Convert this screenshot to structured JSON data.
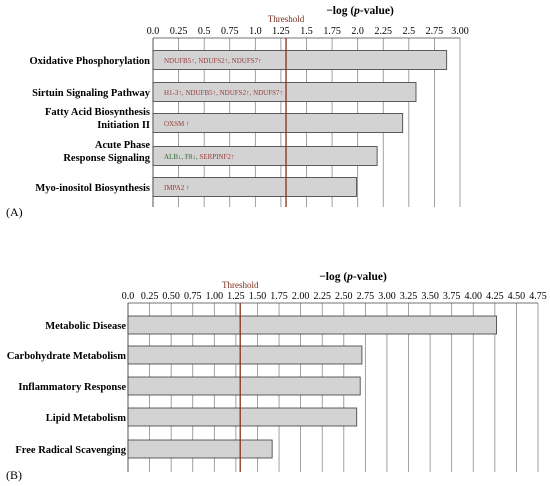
{
  "chart_data": [
    {
      "type": "bar",
      "orientation": "horizontal",
      "panel_label": "(A)",
      "title_prefix": "−log (",
      "title_italic": "p",
      "title_suffix": "-value)",
      "threshold_label": "Threshold",
      "threshold": 1.3,
      "xlim": [
        0,
        3.0
      ],
      "xticks": [
        "0.0",
        "0.25",
        "0.5",
        "0.75",
        "1.0",
        "1.25",
        "1.5",
        "1.75",
        "2.0",
        "2.25",
        "2.5",
        "2.75",
        "3.00"
      ],
      "grid": "vertical",
      "categories": [
        "Oxidative Phosphorylation",
        "Sirtuin Signaling Pathway",
        "Fatty Acid Biosynthesis Initiation II",
        "Acute Phase Response Signaling",
        "Myo-inositol Biosynthesis"
      ],
      "values": [
        2.87,
        2.57,
        2.44,
        2.19,
        1.99
      ],
      "annotations": [
        [
          {
            "text": "NDUFB5↑, NDUFS2↑, NDUFS7↑",
            "color": "#9b3b3b"
          }
        ],
        [
          {
            "text": "H1-3↑, NDUFB5↑, NDUFS2↑, NDUFS7↑",
            "color": "#9b3b3b"
          }
        ],
        [
          {
            "text": "OXSM ↑",
            "color": "#9b3b3b"
          }
        ],
        [
          {
            "text": "ALB↓, F8↓, ",
            "color": "#2e6a2e"
          },
          {
            "text": "SERPINF2↑",
            "color": "#9b3b3b"
          }
        ],
        [
          {
            "text": "IMPA2 ↑",
            "color": "#9b3b3b"
          }
        ]
      ]
    },
    {
      "type": "bar",
      "orientation": "horizontal",
      "panel_label": "(B)",
      "title_prefix": "−log (",
      "title_italic": "p",
      "title_suffix": "-value)",
      "threshold_label": "Threshold",
      "threshold": 1.3,
      "xlim": [
        0,
        4.75
      ],
      "xticks": [
        "0.0",
        "0.25",
        "0.50",
        "0.75",
        "1.00",
        "1.25",
        "1.50",
        "1.75",
        "2.00",
        "2.25",
        "2.50",
        "2.75",
        "3.00",
        "3.25",
        "3.50",
        "3.75",
        "4.00",
        "4.25",
        "4.50",
        "4.75"
      ],
      "grid": "vertical",
      "categories": [
        "Metabolic Disease",
        "Carbohydrate Metabolism",
        "Inflammatory Response",
        "Lipid Metabolism",
        "Free Radical Scavenging"
      ],
      "values": [
        4.27,
        2.71,
        2.69,
        2.65,
        1.67
      ]
    }
  ]
}
